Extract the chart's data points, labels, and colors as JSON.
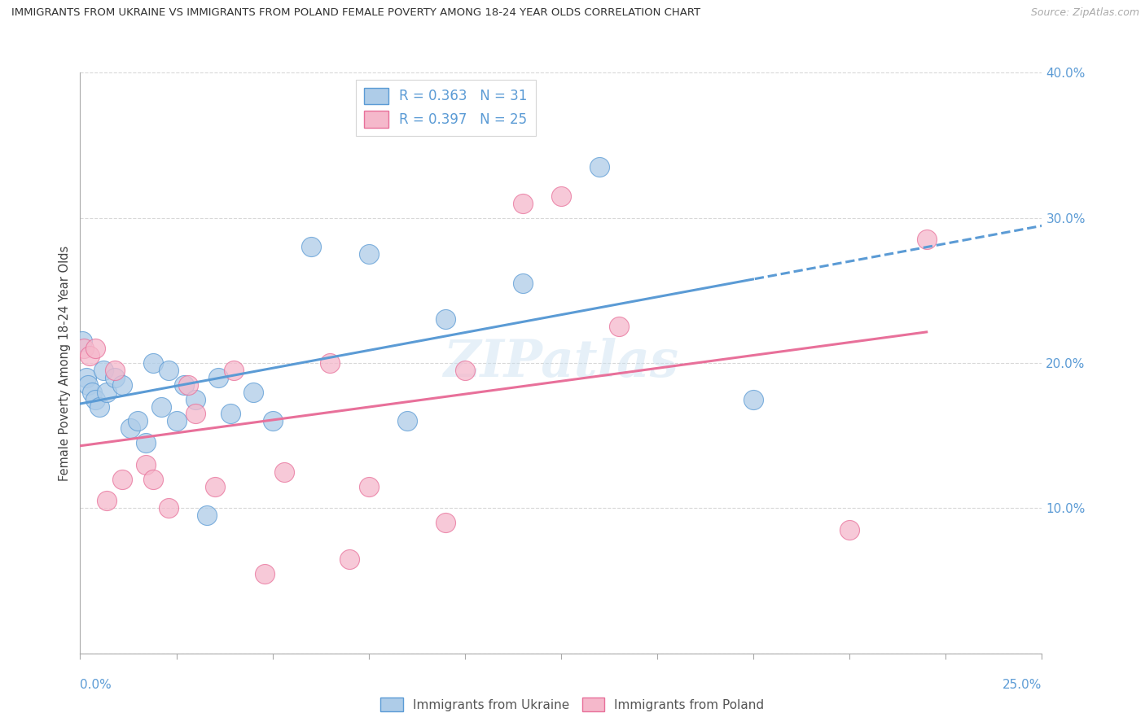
{
  "title": "IMMIGRANTS FROM UKRAINE VS IMMIGRANTS FROM POLAND FEMALE POVERTY AMONG 18-24 YEAR OLDS CORRELATION CHART",
  "source": "Source: ZipAtlas.com",
  "ylabel": "Female Poverty Among 18-24 Year Olds",
  "xlim": [
    0.0,
    25.0
  ],
  "ylim": [
    0.0,
    40.0
  ],
  "ukraine_R": 0.363,
  "ukraine_N": 31,
  "poland_R": 0.397,
  "poland_N": 25,
  "ukraine_color": "#aecce8",
  "poland_color": "#f5b8cb",
  "ukraine_line_color": "#5b9bd5",
  "poland_line_color": "#e8709a",
  "watermark": "ZIPatlas",
  "ukraine_x": [
    0.05,
    0.15,
    0.2,
    0.3,
    0.4,
    0.5,
    0.6,
    0.7,
    0.9,
    1.1,
    1.3,
    1.5,
    1.7,
    1.9,
    2.1,
    2.3,
    2.5,
    2.7,
    3.0,
    3.3,
    3.6,
    3.9,
    4.5,
    5.0,
    6.0,
    7.5,
    8.5,
    9.5,
    11.5,
    13.5,
    17.5
  ],
  "ukraine_y": [
    21.5,
    19.0,
    18.5,
    18.0,
    17.5,
    17.0,
    19.5,
    18.0,
    19.0,
    18.5,
    15.5,
    16.0,
    14.5,
    20.0,
    17.0,
    19.5,
    16.0,
    18.5,
    17.5,
    9.5,
    19.0,
    16.5,
    18.0,
    16.0,
    28.0,
    27.5,
    16.0,
    23.0,
    25.5,
    33.5,
    17.5
  ],
  "poland_x": [
    0.1,
    0.25,
    0.4,
    0.7,
    0.9,
    1.1,
    1.7,
    1.9,
    2.3,
    2.8,
    3.0,
    3.5,
    4.0,
    4.8,
    5.3,
    6.5,
    7.0,
    7.5,
    9.5,
    10.0,
    11.5,
    12.5,
    14.0,
    20.0,
    22.0
  ],
  "poland_y": [
    21.0,
    20.5,
    21.0,
    10.5,
    19.5,
    12.0,
    13.0,
    12.0,
    10.0,
    18.5,
    16.5,
    11.5,
    19.5,
    5.5,
    12.5,
    20.0,
    6.5,
    11.5,
    9.0,
    19.5,
    31.0,
    31.5,
    22.5,
    8.5,
    28.5
  ],
  "background_color": "#ffffff",
  "grid_color": "#d8d8d8"
}
